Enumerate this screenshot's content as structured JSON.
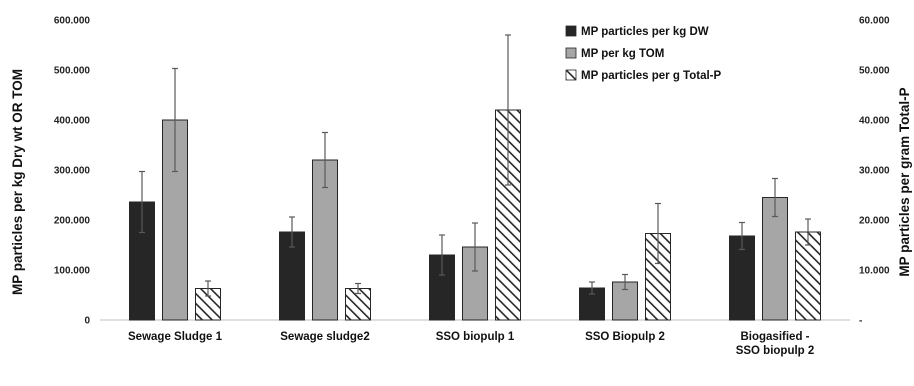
{
  "chart_data": {
    "type": "bar",
    "title": "",
    "categories": [
      [
        "Sewage Sludge 1"
      ],
      [
        "Sewage sludge2"
      ],
      [
        "SSO biopulp 1"
      ],
      [
        "SSO Biopulp 2"
      ],
      [
        "Biogasified -",
        "SSO biopulp 2"
      ]
    ],
    "ylabel": "MP particles per kg Dry wt OR TOM",
    "y2label": "MP particles per gram Total-P",
    "ylim": [
      0,
      600000
    ],
    "y2lim": [
      0,
      60000
    ],
    "yticks": [
      0,
      100000,
      200000,
      300000,
      400000,
      500000,
      600000
    ],
    "yticklabels": [
      "0",
      "100.000",
      "200.000",
      "300.000",
      "400.000",
      "500.000",
      "600.000"
    ],
    "y2ticks": [
      0,
      10000,
      20000,
      30000,
      40000,
      50000,
      60000
    ],
    "y2ticklabels": [
      "-",
      "10.000",
      "20.000",
      "30.000",
      "40.000",
      "50.000",
      "60.000"
    ],
    "grid": false,
    "legend_position": "top-right",
    "series": [
      {
        "name": "MP particles per kg DW",
        "axis": "left",
        "color": "#262626",
        "pattern": "solid",
        "values": [
          236000,
          176000,
          130000,
          64000,
          168000
        ],
        "errors": [
          61000,
          30000,
          40000,
          12000,
          27000
        ]
      },
      {
        "name": "MP per kg TOM",
        "axis": "left",
        "color": "#a6a6a6",
        "pattern": "solid",
        "values": [
          400000,
          320000,
          146000,
          76000,
          245000
        ],
        "errors": [
          103000,
          55000,
          48000,
          15000,
          38000
        ]
      },
      {
        "name": "MP particles per g Total-P",
        "axis": "right",
        "color": "#262626",
        "pattern": "diagonal-hatch",
        "values": [
          6300,
          6300,
          42000,
          17300,
          17600
        ],
        "errors": [
          1500,
          1000,
          15000,
          6000,
          2600
        ]
      }
    ]
  }
}
